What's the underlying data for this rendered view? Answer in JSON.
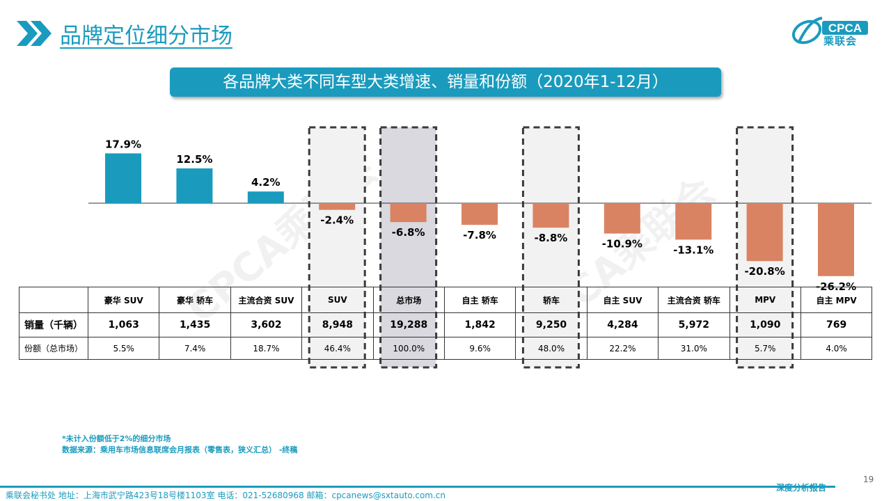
{
  "header": {
    "title": "品牌定位细分市场"
  },
  "logo": {
    "text": "CPCA",
    "sub": "乘联会",
    "mark": "CPCA"
  },
  "banner": {
    "text": "各品牌大类不同车型大类增速、销量和份额（2020年1-12月）"
  },
  "colors": {
    "accent": "#1a9bbe",
    "negative": "#d98363",
    "highlight_bg": "#f2f2f2",
    "total_bg": "#d9d9df"
  },
  "chart_data": {
    "type": "bar",
    "categories": [
      "豪华 SUV",
      "豪华 轿车",
      "主流合资 SUV",
      "SUV",
      "总市场",
      "自主 轿车",
      "轿车",
      "自主 SUV",
      "主流合资 轿车",
      "MPV",
      "自主 MPV"
    ],
    "series": [
      {
        "values": [
          17.9,
          12.5,
          4.2,
          -2.4,
          -6.8,
          -7.8,
          -8.8,
          -10.9,
          -13.1,
          -20.8,
          -26.2
        ]
      }
    ],
    "value_labels": [
      "17.9%",
      "12.5%",
      "4.2%",
      "-2.4%",
      "-6.8%",
      "-7.8%",
      "-8.8%",
      "-10.9%",
      "-13.1%",
      "-20.8%",
      "-26.2%"
    ],
    "highlighted": [
      "SUV",
      "总市场",
      "轿车",
      "MPV"
    ],
    "unit": "%",
    "ylim": [
      -30,
      20
    ]
  },
  "table": {
    "row_labels": [
      "销量（千辆）",
      "份额（总市场）"
    ],
    "sales": [
      "1,063",
      "1,435",
      "3,602",
      "8,948",
      "19,288",
      "1,842",
      "9,250",
      "4,284",
      "5,972",
      "1,090",
      "769"
    ],
    "shares": [
      "5.5%",
      "7.4%",
      "18.7%",
      "46.4%",
      "100.0%",
      "9.6%",
      "48.0%",
      "22.2%",
      "31.0%",
      "5.7%",
      "4.0%"
    ]
  },
  "footnote": {
    "line1": "*未计入份额低于2%的细分市场",
    "line2": "数据来源：乘用车市场信息联席会月报表（零售表，狭义汇总）  -终稿"
  },
  "watermark": "CPCA乘联会",
  "page_number": "19",
  "footer": {
    "text": "乘联会秘书处    地址：上海市武宁路423号18号楼1103室    电话：021-52680968    邮箱：cpcanews@sxtauto.com.cn",
    "report_label": "深度分析报告"
  }
}
